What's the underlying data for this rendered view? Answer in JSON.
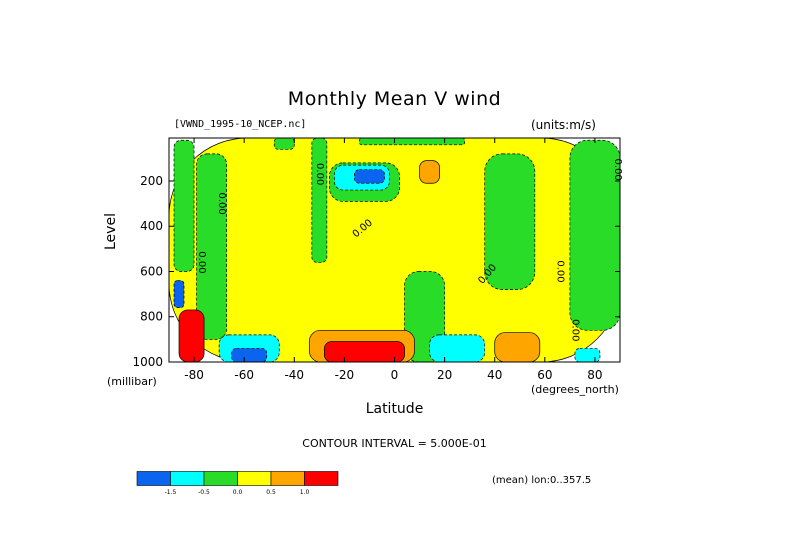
{
  "chart_data": {
    "type": "heatmap",
    "subtype": "filled-contour",
    "title": "Monthly Mean V wind",
    "dataset": "[VWND_1995-10_NCEP.nc]",
    "units": "(units:m/s)",
    "xlabel": "Latitude",
    "x_units": "(degrees_north)",
    "ylabel": "Level",
    "y_units": "(millibar)",
    "xlim": [
      -90,
      90
    ],
    "ylim": [
      1000,
      10
    ],
    "y_axis_reversed": true,
    "x_ticks": [
      -80,
      -60,
      -40,
      -20,
      0,
      20,
      40,
      60,
      80
    ],
    "y_ticks": [
      200,
      400,
      600,
      800,
      1000
    ],
    "contour_interval_text": "CONTOUR INTERVAL = 5.000E-01",
    "footnote": "(mean) lon:0..357.5",
    "contour_labels": [
      "0.00"
    ],
    "colorbar": {
      "labels": [
        "-1.5",
        "-0.5",
        "0.0",
        "0.5",
        "1.0"
      ],
      "bins": [
        {
          "range": "< -1.5",
          "color": "#0a64f0"
        },
        {
          "range": "-1.5 to -0.5",
          "color": "#00ffff"
        },
        {
          "range": "-0.5 to 0.0",
          "color": "#28dc28"
        },
        {
          "range": "0.0 to 0.5",
          "color": "#ffff00"
        },
        {
          "range": "0.5 to 1.0",
          "color": "#ffa500"
        },
        {
          "range": "> 1.0",
          "color": "#ff0000"
        }
      ]
    },
    "regions": [
      {
        "level_class": "positive",
        "lat": [
          -90,
          90
        ],
        "lev": [
          10,
          1000
        ],
        "value": 0.2
      },
      {
        "level_class": "weak_negative",
        "lat": [
          -88,
          -80
        ],
        "lev": [
          20,
          600
        ],
        "value": -0.2
      },
      {
        "level_class": "weak_negative",
        "lat": [
          -79,
          -67
        ],
        "lev": [
          80,
          900
        ],
        "value": -0.2
      },
      {
        "level_class": "weak_negative",
        "lat": [
          -33,
          -27
        ],
        "lev": [
          10,
          560
        ],
        "value": -0.2
      },
      {
        "level_class": "weak_negative",
        "lat": [
          -48,
          -40
        ],
        "lev": [
          10,
          60
        ],
        "value": -0.2
      },
      {
        "level_class": "weak_negative",
        "lat": [
          -14,
          28
        ],
        "lev": [
          10,
          40
        ],
        "value": -0.2
      },
      {
        "level_class": "weak_negative",
        "lat": [
          -26,
          2
        ],
        "lev": [
          120,
          290
        ],
        "value": -0.3
      },
      {
        "level_class": "weak_negative",
        "lat": [
          4,
          20
        ],
        "lev": [
          600,
          1000
        ],
        "value": -0.2
      },
      {
        "level_class": "weak_negative",
        "lat": [
          36,
          56
        ],
        "lev": [
          80,
          680
        ],
        "value": -0.3
      },
      {
        "level_class": "weak_negative",
        "lat": [
          70,
          90
        ],
        "lev": [
          20,
          860
        ],
        "value": -0.3
      },
      {
        "level_class": "moderate_negative",
        "lat": [
          -24,
          -2
        ],
        "lev": [
          130,
          240
        ],
        "value": -1.0
      },
      {
        "level_class": "strong_negative",
        "lat": [
          -16,
          -4
        ],
        "lev": [
          150,
          210
        ],
        "value": -2.0
      },
      {
        "level_class": "moderate_negative",
        "lat": [
          -70,
          -46
        ],
        "lev": [
          880,
          1000
        ],
        "value": -1.0
      },
      {
        "level_class": "strong_negative",
        "lat": [
          -65,
          -51
        ],
        "lev": [
          940,
          1000
        ],
        "value": -1.7
      },
      {
        "level_class": "moderate_negative",
        "lat": [
          14,
          36
        ],
        "lev": [
          880,
          1000
        ],
        "value": -0.8
      },
      {
        "level_class": "moderate_negative",
        "lat": [
          72,
          82
        ],
        "lev": [
          940,
          1000
        ],
        "value": -0.8
      },
      {
        "level_class": "weak_positive",
        "lat": [
          10,
          18
        ],
        "lev": [
          110,
          210
        ],
        "value": 0.7
      },
      {
        "level_class": "weak_positive",
        "lat": [
          40,
          58
        ],
        "lev": [
          870,
          1000
        ],
        "value": 0.7
      },
      {
        "level_class": "weak_positive",
        "lat": [
          -34,
          8
        ],
        "lev": [
          860,
          1000
        ],
        "value": 0.8
      },
      {
        "level_class": "strong_positive",
        "lat": [
          -28,
          4
        ],
        "lev": [
          910,
          1000
        ],
        "value": 1.6
      },
      {
        "level_class": "strong_positive",
        "lat": [
          -86,
          -76
        ],
        "lev": [
          770,
          1000
        ],
        "value": 1.6
      },
      {
        "level_class": "strong_negative",
        "lat": [
          -88,
          -84
        ],
        "lev": [
          640,
          760
        ],
        "value": -1.7
      }
    ]
  }
}
